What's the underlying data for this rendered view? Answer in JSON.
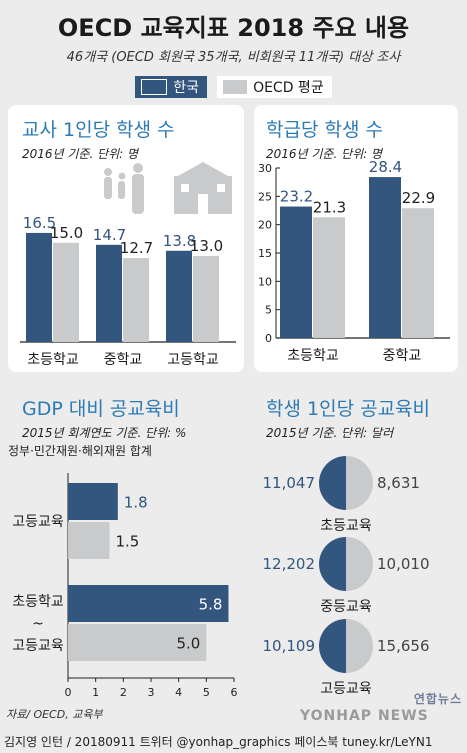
{
  "header": {
    "title": "OECD 교육지표 2018 주요 내용",
    "subtitle": "46개국 (OECD 회원국 35개국, 비회원국 11개국) 대상 조사"
  },
  "legend": {
    "korea": "한국",
    "oecd": "OECD 평균"
  },
  "colors": {
    "korea": "#33567f",
    "oecd": "#c9cacb",
    "title_blue": "#2e7bb4",
    "background": "#ececec"
  },
  "icons": [
    "family-icon",
    "school-icon"
  ],
  "chart_data": [
    {
      "id": "teacher",
      "type": "bar",
      "title": "교사 1인당 학생 수",
      "note": "2016년 기준. 단위: 명",
      "categories": [
        "초등학교",
        "중학교",
        "고등학교"
      ],
      "series": [
        {
          "name": "한국",
          "values": [
            16.5,
            14.7,
            13.8
          ]
        },
        {
          "name": "OECD 평균",
          "values": [
            15.0,
            12.7,
            13.0
          ]
        }
      ]
    },
    {
      "id": "class",
      "type": "bar",
      "title": "학급당 학생 수",
      "note": "2016년 기준. 단위: 명",
      "categories": [
        "초등학교",
        "중학교"
      ],
      "ylim": [
        0,
        30
      ],
      "yticks": [
        0,
        5,
        10,
        15,
        20,
        25,
        30
      ],
      "series": [
        {
          "name": "한국",
          "values": [
            23.2,
            28.4
          ]
        },
        {
          "name": "OECD 평균",
          "values": [
            21.3,
            22.9
          ]
        }
      ]
    },
    {
      "id": "gdp",
      "type": "bar",
      "title": "GDP 대비 공교육비",
      "note": "2015년 회계연도 기준. 단위: %",
      "note2": "정부·민간재원·해외재원 합계",
      "orientation": "horizontal",
      "categories": [
        "고등교육",
        "초등학교~고등교육"
      ],
      "category_lines": [
        [
          "고등교육"
        ],
        [
          "초등학교",
          "~",
          "고등교육"
        ]
      ],
      "xlim": [
        0,
        6
      ],
      "xticks": [
        0,
        1,
        2,
        3,
        4,
        5,
        6
      ],
      "series": [
        {
          "name": "한국",
          "values": [
            1.8,
            5.8
          ]
        },
        {
          "name": "OECD 평균",
          "values": [
            1.5,
            5.0
          ]
        }
      ]
    },
    {
      "id": "spend",
      "type": "pie",
      "title": "학생 1인당 공교육비",
      "note": "2015년 기준. 단위: 달러",
      "categories": [
        "초등교육",
        "중등교육",
        "고등교육"
      ],
      "series": [
        {
          "name": "한국",
          "values": [
            11047,
            12202,
            10109
          ],
          "labels": [
            "11,047",
            "12,202",
            "10,109"
          ]
        },
        {
          "name": "OECD 평균",
          "values": [
            8631,
            10010,
            15656
          ],
          "labels": [
            "8,631",
            "10,010",
            "15,656"
          ]
        }
      ]
    }
  ],
  "footer": {
    "source": "자료/ OECD, 교육부",
    "credit": "김지영 인턴 / 20180911 트위터 @yonhap_graphics 페이스북 tuney.kr/LeYN1",
    "logo_kr": "연합뉴스",
    "logo_en": "YONHAP NEWS"
  }
}
